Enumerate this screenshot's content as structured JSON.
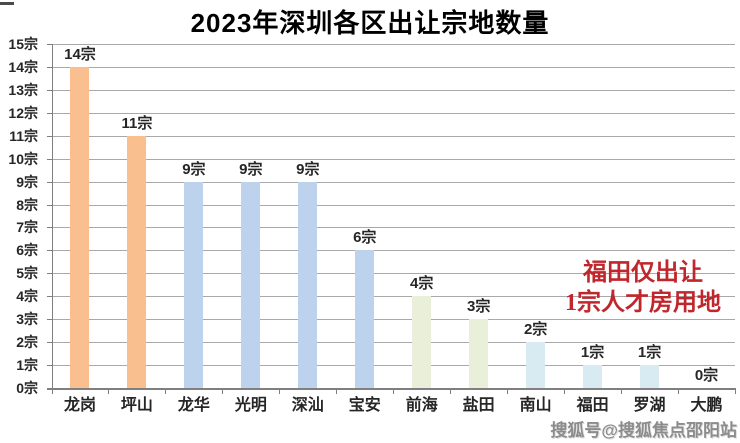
{
  "chart_data": {
    "type": "bar",
    "title": "2023年深圳各区出让宗地数量",
    "categories": [
      "龙岗",
      "坪山",
      "龙华",
      "光明",
      "深汕",
      "宝安",
      "前海",
      "盐田",
      "南山",
      "福田",
      "罗湖",
      "大鹏"
    ],
    "values": [
      14,
      11,
      9,
      9,
      9,
      6,
      4,
      3,
      2,
      1,
      1,
      0
    ],
    "value_labels": [
      "14宗",
      "11宗",
      "9宗",
      "9宗",
      "9宗",
      "6宗",
      "4宗",
      "3宗",
      "2宗",
      "1宗",
      "1宗",
      "0宗"
    ],
    "bar_colors": [
      "#FABF8F",
      "#FABF8F",
      "#BDD2EC",
      "#BDD2EC",
      "#BDD2EC",
      "#BDD2EC",
      "#EAEFD9",
      "#EAEFD9",
      "#D9EBF2",
      "#D9EBF2",
      "#D9EBF2",
      "#D9EBF2"
    ],
    "xlabel": "",
    "ylabel": "",
    "ylim": [
      0,
      15
    ],
    "ytick_step": 1,
    "ytick_suffix": "宗",
    "grid": true,
    "legend": "none",
    "annotation": {
      "lines": [
        "福田仅出让",
        "1宗人才房用地"
      ],
      "color": "#C0272C"
    },
    "watermark": "搜狐号@搜狐焦点邵阳站",
    "colors": {
      "grid": "#a9a9a9",
      "axis": "#7f7f7f",
      "text": "#262626",
      "title": "#000000"
    }
  }
}
